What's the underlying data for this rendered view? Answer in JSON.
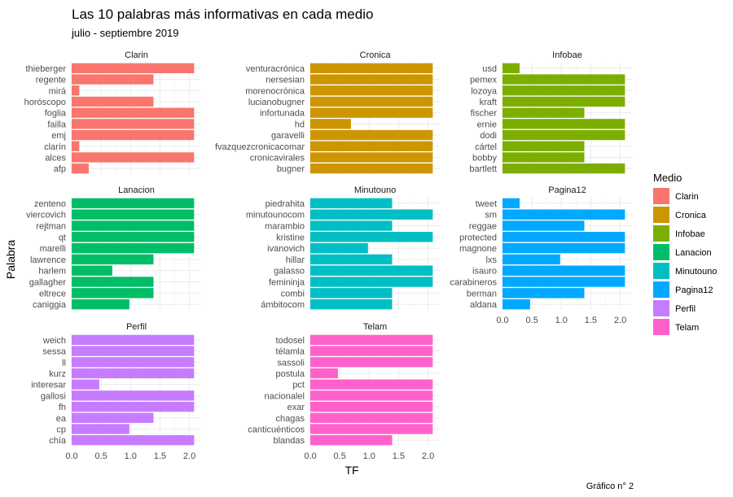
{
  "chart_data": {
    "type": "bar",
    "orientation": "horizontal",
    "title": "Las 10 palabras más informativas en cada medio",
    "subtitle": "julio - septiembre 2019",
    "xlabel": "TF",
    "ylabel": "Palabra",
    "caption": "Gráfico n° 2",
    "xlim": [
      0,
      2.2
    ],
    "x_ticks": [
      "0.0",
      "0.5",
      "1.0",
      "1.5",
      "2.0"
    ],
    "grid": true,
    "legend": {
      "title": "Medio",
      "position": "right",
      "entries": [
        {
          "name": "Clarin",
          "color": "#F8766D"
        },
        {
          "name": "Cronica",
          "color": "#CD9600"
        },
        {
          "name": "Infobae",
          "color": "#7CAE00"
        },
        {
          "name": "Lanacion",
          "color": "#00BE67"
        },
        {
          "name": "Minutouno",
          "color": "#00BFC4"
        },
        {
          "name": "Pagina12",
          "color": "#00A9FF"
        },
        {
          "name": "Perfil",
          "color": "#C77CFF"
        },
        {
          "name": "Telam",
          "color": "#FF61CC"
        }
      ]
    },
    "panels": [
      {
        "name": "Clarin",
        "color": "#F8766D",
        "categories": [
          "thieberger",
          "regente",
          "mirá",
          "horóscopo",
          "foglia",
          "failla",
          "emj",
          "clarín",
          "alces",
          "afp"
        ],
        "values": [
          2.08,
          1.39,
          0.13,
          1.39,
          2.08,
          2.08,
          2.08,
          0.13,
          2.08,
          0.29
        ]
      },
      {
        "name": "Cronica",
        "color": "#CD9600",
        "categories": [
          "venturacrónica",
          "nersesian",
          "morenocrónica",
          "lucianobugner",
          "infortunada",
          "hd",
          "garavelli",
          "fvazquezcronicacomar",
          "cronicavirales",
          "bugner"
        ],
        "values": [
          2.08,
          2.08,
          2.08,
          2.08,
          2.08,
          0.69,
          2.08,
          2.08,
          2.08,
          2.08
        ]
      },
      {
        "name": "Infobae",
        "color": "#7CAE00",
        "categories": [
          "usd",
          "pemex",
          "lozoya",
          "kraft",
          "fischer",
          "ernie",
          "dodi",
          "cártel",
          "bobby",
          "bartlett"
        ],
        "values": [
          0.29,
          2.08,
          2.08,
          2.08,
          1.39,
          2.08,
          2.08,
          1.39,
          1.39,
          2.08
        ]
      },
      {
        "name": "Lanacion",
        "color": "#00BE67",
        "categories": [
          "zenteno",
          "viercovich",
          "rejtman",
          "qt",
          "marelli",
          "lawrence",
          "harlem",
          "gallagher",
          "eltrece",
          "caniggia"
        ],
        "values": [
          2.08,
          2.08,
          2.08,
          2.08,
          2.08,
          1.39,
          0.69,
          1.39,
          1.39,
          0.98
        ]
      },
      {
        "name": "Minutouno",
        "color": "#00BFC4",
        "categories": [
          "piedrahita",
          "minutounocom",
          "marambio",
          "kristine",
          "ivanovich",
          "hillar",
          "galasso",
          "femininja",
          "combi",
          "ámbitocom"
        ],
        "values": [
          1.39,
          2.08,
          1.39,
          2.08,
          0.98,
          1.39,
          2.08,
          2.08,
          1.39,
          1.39
        ]
      },
      {
        "name": "Pagina12",
        "color": "#00A9FF",
        "categories": [
          "tweet",
          "sm",
          "reggae",
          "protected",
          "magnone",
          "lxs",
          "isauro",
          "carabineros",
          "berman",
          "aldana"
        ],
        "values": [
          0.29,
          2.08,
          1.39,
          2.08,
          2.08,
          0.98,
          2.08,
          2.08,
          1.39,
          0.47
        ]
      },
      {
        "name": "Perfil",
        "color": "#C77CFF",
        "categories": [
          "weich",
          "sessa",
          "ll",
          "kurz",
          "interesar",
          "gallosi",
          "fh",
          "ea",
          "cp",
          "chía"
        ],
        "values": [
          2.08,
          2.08,
          2.08,
          2.08,
          0.47,
          2.08,
          2.08,
          1.39,
          0.98,
          2.08
        ]
      },
      {
        "name": "Telam",
        "color": "#FF61CC",
        "categories": [
          "todosel",
          "télamla",
          "sassoli",
          "postula",
          "pct",
          "nacionalel",
          "exar",
          "chagas",
          "canticuénticos",
          "blandas"
        ],
        "values": [
          2.08,
          2.08,
          2.08,
          0.47,
          2.08,
          2.08,
          2.08,
          2.08,
          2.08,
          1.39
        ]
      }
    ]
  }
}
